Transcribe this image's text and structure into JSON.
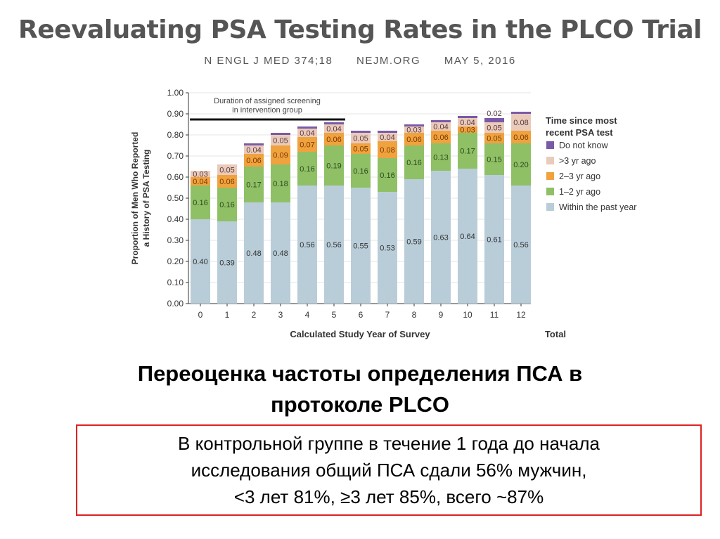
{
  "header": {
    "title": "Reevaluating PSA Testing Rates in the PLCO Trial",
    "citation": [
      "N ENGL J MED 374;18",
      "NEJM.ORG",
      "MAY 5, 2016"
    ]
  },
  "chart_data": {
    "type": "bar",
    "stacked": true,
    "categories": [
      "0",
      "1",
      "2",
      "3",
      "4",
      "5",
      "6",
      "7",
      "8",
      "9",
      "10",
      "11",
      "12"
    ],
    "extra_x_label": "Total",
    "xlabel": "Calculated Study Year of Survey",
    "ylabel": [
      "Proportion of Men Who Reported",
      "a History of PSA Testing"
    ],
    "ylim": [
      0,
      1
    ],
    "yticks": [
      "0.00",
      "0.10",
      "0.20",
      "0.30",
      "0.40",
      "0.50",
      "0.60",
      "0.70",
      "0.80",
      "0.90",
      "1.00"
    ],
    "annotation": [
      "Duration of assigned screening",
      "in intervention group"
    ],
    "annotation_span": [
      "0",
      "5"
    ],
    "legend_title": [
      "Time since most",
      "recent PSA test"
    ],
    "legend_position": "right",
    "series": [
      {
        "name": "Within the past year",
        "color": "#b9cdd9",
        "values": [
          0.4,
          0.39,
          0.48,
          0.48,
          0.56,
          0.56,
          0.55,
          0.53,
          0.59,
          0.63,
          0.64,
          0.61,
          0.56
        ],
        "labels": [
          "0.40",
          "0.39",
          "0.48",
          "0.48",
          "0.56",
          "0.56",
          "0.55",
          "0.53",
          "0.59",
          "0.63",
          "0.64",
          "0.61",
          "0.56"
        ]
      },
      {
        "name": "1–2 yr ago",
        "color": "#8fc066",
        "values": [
          0.16,
          0.16,
          0.17,
          0.18,
          0.16,
          0.19,
          0.16,
          0.16,
          0.16,
          0.13,
          0.17,
          0.15,
          0.2
        ],
        "labels": [
          "0.16",
          "0.16",
          "0.17",
          "0.18",
          "0.16",
          "0.19",
          "0.16",
          "0.16",
          "0.16",
          "0.13",
          "0.17",
          "0.15",
          "0.20"
        ]
      },
      {
        "name": "2–3 yr ago",
        "color": "#f0a23e",
        "values": [
          0.04,
          0.06,
          0.06,
          0.09,
          0.07,
          0.06,
          0.05,
          0.08,
          0.06,
          0.06,
          0.03,
          0.05,
          0.06
        ],
        "labels": [
          "0.04",
          "0.06",
          "0.06",
          "0.09",
          "0.07",
          "0.06",
          "0.05",
          "0.08",
          "0.06",
          "0.06",
          "0.03",
          "0.05",
          "0.06"
        ]
      },
      {
        "name": ">3 yr ago",
        "color": "#eacbbb",
        "values": [
          0.03,
          0.05,
          0.04,
          0.05,
          0.04,
          0.04,
          0.05,
          0.04,
          0.03,
          0.04,
          0.04,
          0.05,
          0.08
        ],
        "labels": [
          "0.03",
          "0.05",
          "0.04",
          "0.05",
          "0.04",
          "0.04",
          "0.05",
          "0.04",
          "0.03",
          "0.04",
          "0.04",
          "0.05",
          "0.08"
        ]
      },
      {
        "name": "Do not know",
        "color": "#7a5aa8",
        "values": [
          0,
          0,
          0.01,
          0.01,
          0.01,
          0.01,
          0.01,
          0.01,
          0.01,
          0.01,
          0.01,
          0.02,
          0.01
        ],
        "labels": [
          "",
          "",
          "",
          "",
          "",
          "",
          "",
          "",
          "",
          "",
          "",
          "0.02",
          ""
        ]
      }
    ]
  },
  "slide": {
    "title": [
      "Переоценка частоты определения ПСА в",
      "протоколе PLCO"
    ],
    "note": [
      "В контрольной группе в течение 1 года до начала",
      "исследования общий ПСА сдали 56% мужчин,",
      "<3 лет 81%, ≥3 лет 85%, всего ~87%"
    ]
  }
}
